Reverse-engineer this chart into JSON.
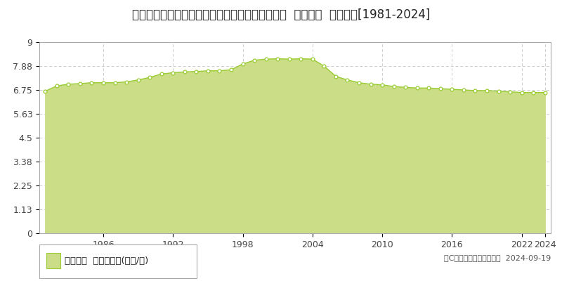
{
  "title": "宮崎県東諸県郡国富町大字木脇字赤池１３３７番  公示地価  地価推移[1981-2024]",
  "years": [
    1981,
    1982,
    1983,
    1984,
    1985,
    1986,
    1987,
    1988,
    1989,
    1990,
    1991,
    1992,
    1993,
    1994,
    1995,
    1996,
    1997,
    1998,
    1999,
    2000,
    2001,
    2002,
    2003,
    2004,
    2005,
    2006,
    2007,
    2008,
    2009,
    2010,
    2011,
    2012,
    2013,
    2014,
    2015,
    2016,
    2017,
    2018,
    2019,
    2020,
    2021,
    2022,
    2023,
    2024
  ],
  "values": [
    6.69,
    6.94,
    7.02,
    7.05,
    7.09,
    7.09,
    7.09,
    7.13,
    7.22,
    7.34,
    7.5,
    7.56,
    7.6,
    7.62,
    7.65,
    7.65,
    7.7,
    7.97,
    8.15,
    8.2,
    8.22,
    8.2,
    8.22,
    8.2,
    7.87,
    7.39,
    7.22,
    7.09,
    7.02,
    6.99,
    6.91,
    6.87,
    6.84,
    6.84,
    6.81,
    6.78,
    6.75,
    6.72,
    6.72,
    6.69,
    6.66,
    6.63,
    6.63,
    6.63
  ],
  "yticks": [
    0,
    1.13,
    2.25,
    3.38,
    4.5,
    5.63,
    6.75,
    7.88,
    9
  ],
  "ytick_labels": [
    "0",
    "1.13",
    "2.25",
    "3.38",
    "4.5",
    "5.63",
    "6.75",
    "7.88",
    "9"
  ],
  "xtick_years": [
    1986,
    1992,
    1998,
    2004,
    2010,
    2016,
    2022,
    2024
  ],
  "ylim": [
    0,
    9
  ],
  "line_color": "#99cc33",
  "fill_color": "#ccdd88",
  "marker_facecolor": "#ffffff",
  "marker_edgecolor": "#99cc33",
  "background_color": "#ffffff",
  "grid_color": "#cccccc",
  "legend_label": "公示地価  平均坪単価(万円/坪)",
  "legend_square_color": "#ccdd88",
  "legend_square_edge": "#99cc33",
  "copyright_text": "（C）土地価格ドットコム  2024-09-19",
  "title_fontsize": 12,
  "tick_fontsize": 9,
  "legend_fontsize": 9.5,
  "copyright_fontsize": 8
}
